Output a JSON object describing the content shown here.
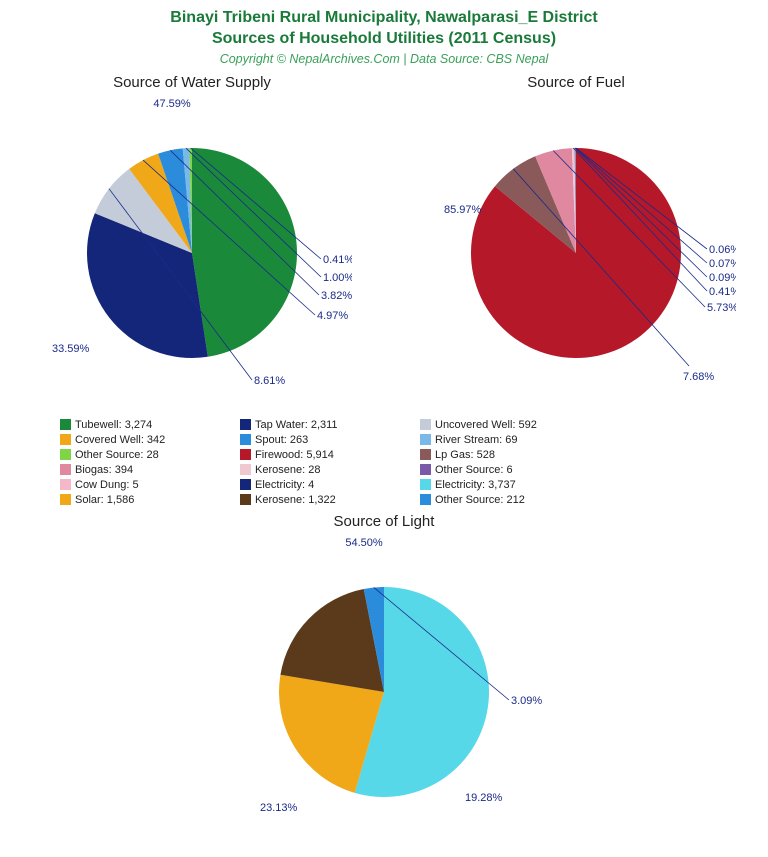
{
  "title": {
    "line1": "Binayi Tribeni Rural Municipality, Nawalparasi_E District",
    "line2": "Sources of Household Utilities (2011 Census)",
    "color": "#1a7a3a",
    "fontsize": 16
  },
  "subtitle": {
    "text": "Copyright © NepalArchives.Com | Data Source: CBS Nepal",
    "color": "#3aa05a",
    "fontsize": 12.5
  },
  "label_color": "#1a2b8a",
  "charts": {
    "water": {
      "title": "Source of Water Supply",
      "type": "pie",
      "radius": 105,
      "slices": [
        {
          "label": "Tubewell",
          "value": 3274,
          "pct": "47.59%",
          "color": "#1a8a3a"
        },
        {
          "label": "Tap Water",
          "value": 2311,
          "pct": "33.59%",
          "color": "#14267a"
        },
        {
          "label": "Uncovered Well",
          "value": 592,
          "pct": "8.61%",
          "color": "#c3ccd8"
        },
        {
          "label": "Covered Well",
          "value": 342,
          "pct": "4.97%",
          "color": "#f0a818"
        },
        {
          "label": "Spout",
          "value": 263,
          "pct": "3.82%",
          "color": "#2b8cdb"
        },
        {
          "label": "River Stream",
          "value": 69,
          "pct": "1.00%",
          "color": "#7ab8e8"
        },
        {
          "label": "Other Source",
          "value": 28,
          "pct": "0.41%",
          "color": "#7fd448"
        }
      ]
    },
    "fuel": {
      "title": "Source of Fuel",
      "type": "pie",
      "radius": 105,
      "slices": [
        {
          "label": "Firewood",
          "value": 5914,
          "pct": "85.97%",
          "color": "#b51828"
        },
        {
          "label": "Lp Gas",
          "value": 528,
          "pct": "7.68%",
          "color": "#8a5a5a"
        },
        {
          "label": "Biogas",
          "value": 394,
          "pct": "5.73%",
          "color": "#e088a0"
        },
        {
          "label": "Kerosene",
          "value": 28,
          "pct": "0.41%",
          "color": "#f0c8d0"
        },
        {
          "label": "Other Source",
          "value": 6,
          "pct": "0.09%",
          "color": "#7a5aa8"
        },
        {
          "label": "Cow Dung",
          "value": 5,
          "pct": "0.07%",
          "color": "#f4b8c8"
        },
        {
          "label": "Electricity",
          "value": 4,
          "pct": "0.06%",
          "color": "#14267a"
        }
      ]
    },
    "light": {
      "title": "Source of Light",
      "type": "pie",
      "radius": 105,
      "slices": [
        {
          "label": "Electricity",
          "value": 3737,
          "pct": "54.50%",
          "color": "#56d8e8"
        },
        {
          "label": "Solar",
          "value": 1586,
          "pct": "23.13%",
          "color": "#f0a818"
        },
        {
          "label": "Kerosene",
          "value": 1322,
          "pct": "19.28%",
          "color": "#5a3a1a"
        },
        {
          "label": "Other Source",
          "value": 212,
          "pct": "3.09%",
          "color": "#2b8cdb"
        }
      ]
    }
  },
  "legend": {
    "fontsize": 11,
    "columns": 4,
    "items": [
      {
        "swatch": "#1a8a3a",
        "text": "Tubewell: 3,274"
      },
      {
        "swatch": "#14267a",
        "text": "Tap Water: 2,311"
      },
      {
        "swatch": "#c3ccd8",
        "text": "Uncovered Well: 592"
      },
      {
        "swatch": "#f0a818",
        "text": "Covered Well: 342"
      },
      {
        "swatch": "#2b8cdb",
        "text": "Spout: 263"
      },
      {
        "swatch": "#7ab8e8",
        "text": "River Stream: 69"
      },
      {
        "swatch": "#7fd448",
        "text": "Other Source: 28"
      },
      {
        "swatch": "#b51828",
        "text": "Firewood: 5,914"
      },
      {
        "swatch": "#8a5a5a",
        "text": "Lp Gas: 528"
      },
      {
        "swatch": "#e088a0",
        "text": "Biogas: 394"
      },
      {
        "swatch": "#f0c8d0",
        "text": "Kerosene: 28"
      },
      {
        "swatch": "#7a5aa8",
        "text": "Other Source: 6"
      },
      {
        "swatch": "#f4b8c8",
        "text": "Cow Dung: 5"
      },
      {
        "swatch": "#14267a",
        "text": "Electricity: 4"
      },
      {
        "swatch": "#56d8e8",
        "text": "Electricity: 3,737"
      },
      {
        "swatch": "#f0a818",
        "text": "Solar: 1,586"
      },
      {
        "swatch": "#5a3a1a",
        "text": "Kerosene: 1,322"
      },
      {
        "swatch": "#2b8cdb",
        "text": "Other Source: 212"
      }
    ]
  }
}
